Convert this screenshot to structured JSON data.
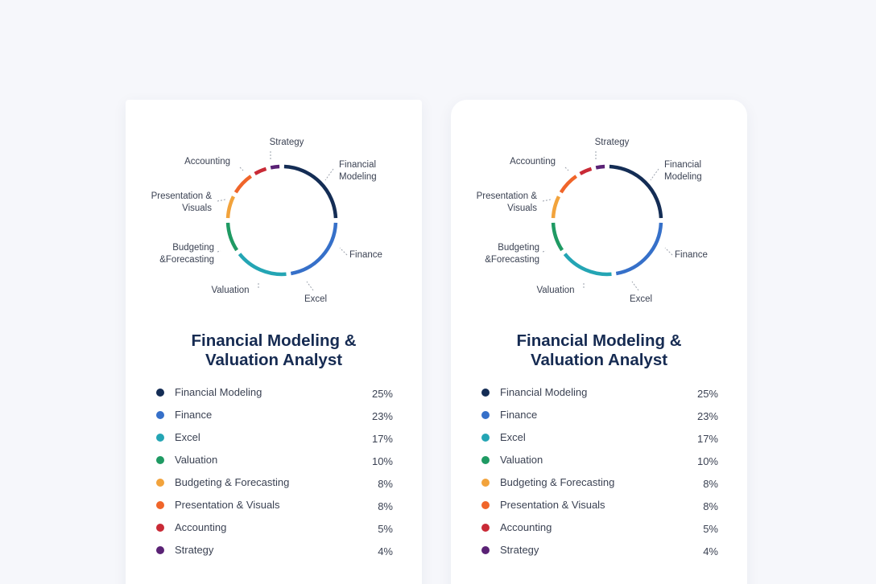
{
  "cards": [
    {
      "title_line1": "Financial Modeling &",
      "title_line2": "Valuation Analyst",
      "donut_labels": [
        {
          "id": "strategy",
          "lines": [
            "Strategy"
          ]
        },
        {
          "id": "financial-modeling",
          "lines": [
            "Financial",
            "Modeling"
          ]
        },
        {
          "id": "finance",
          "lines": [
            "Finance"
          ]
        },
        {
          "id": "excel",
          "lines": [
            "Excel"
          ]
        },
        {
          "id": "valuation",
          "lines": [
            "Valuation"
          ]
        },
        {
          "id": "budgeting",
          "lines": [
            "Budgeting",
            "&Forecasting"
          ]
        },
        {
          "id": "presentation",
          "lines": [
            "Presentation &",
            "Visuals"
          ]
        },
        {
          "id": "accounting",
          "lines": [
            "Accounting"
          ]
        }
      ]
    },
    {
      "title_line1": "Financial Modeling &",
      "title_line2": "Valuation Analyst",
      "donut_labels": [
        {
          "id": "strategy",
          "lines": [
            "Strategy"
          ]
        },
        {
          "id": "financial-modeling",
          "lines": [
            "Financial",
            "Modeling"
          ]
        },
        {
          "id": "finance",
          "lines": [
            "Finance"
          ]
        },
        {
          "id": "excel",
          "lines": [
            "Excel"
          ]
        },
        {
          "id": "valuation",
          "lines": [
            "Valuation"
          ]
        },
        {
          "id": "budgeting",
          "lines": [
            "Budgeting",
            "&Forecasting"
          ]
        },
        {
          "id": "presentation",
          "lines": [
            "Presentation &",
            "Visuals"
          ]
        },
        {
          "id": "accounting",
          "lines": [
            "Accounting"
          ]
        }
      ]
    }
  ],
  "chart_data": [
    {
      "type": "pie",
      "title": "Financial Modeling & Valuation Analyst",
      "categories": [
        "Financial Modeling",
        "Finance",
        "Excel",
        "Valuation",
        "Budgeting & Forecasting",
        "Presentation & Visuals",
        "Accounting",
        "Strategy"
      ],
      "values": [
        25,
        23,
        17,
        10,
        8,
        8,
        5,
        4
      ],
      "value_labels": [
        "25%",
        "23%",
        "17%",
        "10%",
        "8%",
        "8%",
        "5%",
        "4%"
      ],
      "colors": [
        "#142d55",
        "#3670c9",
        "#24a5b4",
        "#1f9a63",
        "#f2a33c",
        "#f0652a",
        "#c92a36",
        "#5a2275"
      ],
      "legend": "bottom"
    },
    {
      "type": "pie",
      "title": "Financial Modeling & Valuation Analyst",
      "categories": [
        "Financial Modeling",
        "Finance",
        "Excel",
        "Valuation",
        "Budgeting & Forecasting",
        "Presentation & Visuals",
        "Accounting",
        "Strategy"
      ],
      "values": [
        25,
        23,
        17,
        10,
        8,
        8,
        5,
        4
      ],
      "value_labels": [
        "25%",
        "23%",
        "17%",
        "10%",
        "8%",
        "8%",
        "5%",
        "4%"
      ],
      "colors": [
        "#142d55",
        "#3670c9",
        "#24a5b4",
        "#1f9a63",
        "#f2a33c",
        "#f0652a",
        "#c92a36",
        "#5a2275"
      ],
      "legend": "bottom"
    }
  ]
}
